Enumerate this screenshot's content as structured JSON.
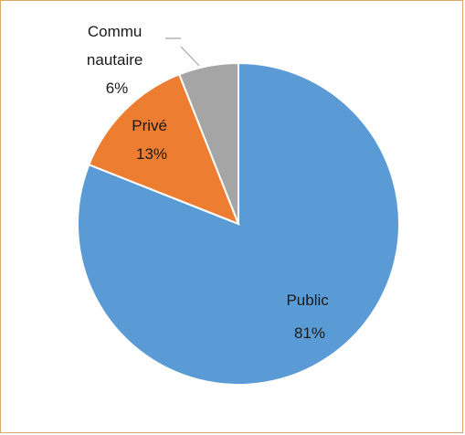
{
  "chart_data": {
    "type": "pie",
    "title": "",
    "start_angle_deg": 0,
    "direction": "clockwise",
    "slices": [
      {
        "label_lines": [
          "Public",
          "81%"
        ],
        "value": 81,
        "color": "#5b9bd5"
      },
      {
        "label_lines": [
          "Privé",
          "13%"
        ],
        "value": 13,
        "color": "#ed7d31"
      },
      {
        "label_lines": [
          "Commu",
          "nautaire",
          "6%"
        ],
        "value": 6,
        "color": "#a5a5a5"
      }
    ]
  },
  "colors": {
    "frame_border": "#d9a96a",
    "slice_border": "#ffffff",
    "leader_line": "#a5a5a5"
  }
}
